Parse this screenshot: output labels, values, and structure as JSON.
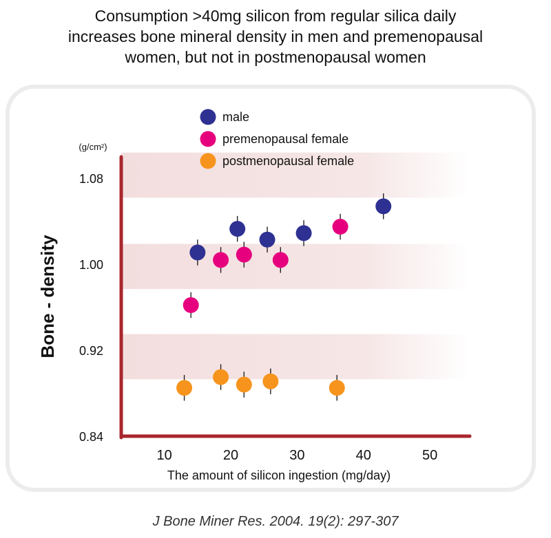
{
  "title_lines": [
    "Consumption >40mg silicon from regular silica daily",
    "increases bone mineral density in men and premenopausal",
    "women, but not in postmenopausal women"
  ],
  "citation": "J Bone Miner Res. 2004. 19(2): 297-307",
  "colors": {
    "male": "#2e3192",
    "premenopausal": "#e6007e",
    "postmenopausal": "#f7941d",
    "axis": "#a8272d",
    "band": "#f3dede"
  },
  "chart_data": {
    "type": "scatter",
    "title": "",
    "xlabel": "The amount of silicon ingestion (mg/day)",
    "ylabel": "Bone - density",
    "y_unit": "(g/cm²)",
    "xlim": [
      3.5,
      56
    ],
    "ylim": [
      0.84,
      1.1
    ],
    "x_ticks": [
      "10",
      "20",
      "30",
      "40",
      "50"
    ],
    "y_ticks": [
      "1.08",
      "1.00",
      "0.92",
      "0.84"
    ],
    "legend_position": "top-center",
    "series": [
      {
        "name": "male",
        "color_key": "male",
        "points": [
          {
            "x": 15,
            "y": 1.011,
            "err": 0.012
          },
          {
            "x": 21,
            "y": 1.033,
            "err": 0.012
          },
          {
            "x": 25.5,
            "y": 1.023,
            "err": 0.012
          },
          {
            "x": 31,
            "y": 1.029,
            "err": 0.012
          },
          {
            "x": 43,
            "y": 1.054,
            "err": 0.012
          }
        ]
      },
      {
        "name": "premenopausal female",
        "color_key": "premenopausal",
        "points": [
          {
            "x": 14,
            "y": 0.962,
            "err": 0.012
          },
          {
            "x": 18.5,
            "y": 1.004,
            "err": 0.012
          },
          {
            "x": 22,
            "y": 1.009,
            "err": 0.012
          },
          {
            "x": 27.5,
            "y": 1.004,
            "err": 0.012
          },
          {
            "x": 36.5,
            "y": 1.035,
            "err": 0.012
          }
        ]
      },
      {
        "name": "postmenopausal female",
        "color_key": "postmenopausal",
        "points": [
          {
            "x": 13,
            "y": 0.885,
            "err": 0.012
          },
          {
            "x": 18.5,
            "y": 0.895,
            "err": 0.012
          },
          {
            "x": 22,
            "y": 0.888,
            "err": 0.012
          },
          {
            "x": 26,
            "y": 0.891,
            "err": 0.012
          },
          {
            "x": 36,
            "y": 0.885,
            "err": 0.012
          }
        ]
      }
    ],
    "bands": [
      {
        "from": 1.062,
        "to": 1.104
      },
      {
        "from": 0.977,
        "to": 1.019
      },
      {
        "from": 0.893,
        "to": 0.935
      }
    ]
  }
}
